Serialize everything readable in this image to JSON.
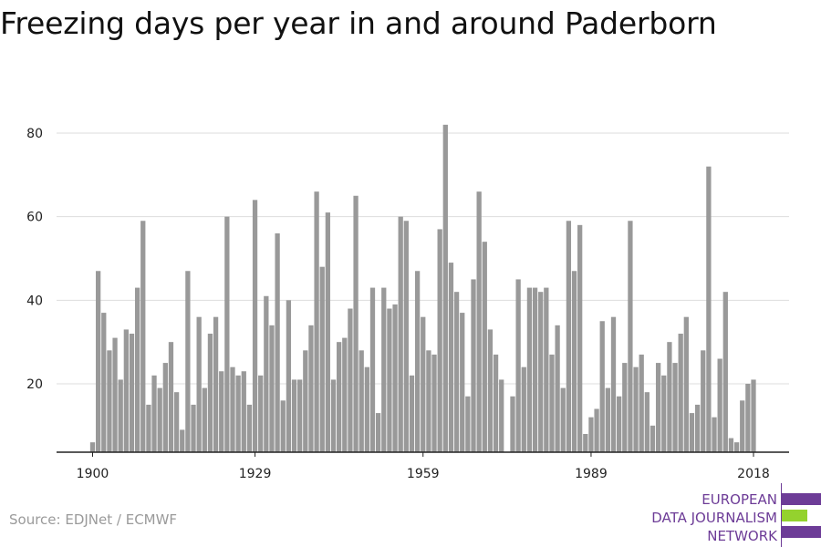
{
  "title": "Freezing days per year in and around Paderborn",
  "source": "Source: EDJNet / ECMWF",
  "logo": {
    "lines": [
      "EUROPEAN",
      "DATA JOURNALISM",
      "NETWORK"
    ],
    "colors": {
      "purple": "#6d3c97",
      "green": "#94d22e"
    }
  },
  "colors": {
    "bar": "#999999",
    "grid": "#dddddd",
    "axis": "#222222",
    "text": "#222222"
  },
  "chart_data": {
    "type": "bar",
    "title": "Freezing days per year in and around Paderborn",
    "xlabel": "",
    "ylabel": "",
    "x_start": 1900,
    "x_end": 2018,
    "x_ticks": [
      1900,
      1929,
      1959,
      1989,
      2018
    ],
    "y_ticks": [
      20,
      40,
      60,
      80
    ],
    "ylim": [
      3,
      85
    ],
    "grid": true,
    "values": [
      6,
      47,
      37,
      28,
      31,
      21,
      33,
      32,
      43,
      59,
      15,
      22,
      19,
      25,
      30,
      18,
      9,
      47,
      15,
      36,
      19,
      32,
      36,
      23,
      60,
      24,
      22,
      23,
      15,
      64,
      22,
      41,
      34,
      56,
      16,
      40,
      21,
      21,
      28,
      34,
      66,
      48,
      61,
      21,
      30,
      31,
      38,
      65,
      28,
      24,
      43,
      13,
      43,
      38,
      39,
      60,
      59,
      22,
      47,
      36,
      28,
      27,
      57,
      82,
      49,
      42,
      37,
      17,
      45,
      66,
      54,
      33,
      27,
      21,
      3,
      17,
      45,
      24,
      43,
      43,
      42,
      43,
      27,
      34,
      19,
      59,
      47,
      58,
      8,
      12,
      14,
      35,
      19,
      36,
      17,
      25,
      59,
      24,
      27,
      18,
      10,
      25,
      22,
      30,
      25,
      32,
      36,
      13,
      15,
      28,
      72,
      12,
      26,
      42,
      7,
      6,
      16,
      20,
      21
    ]
  }
}
